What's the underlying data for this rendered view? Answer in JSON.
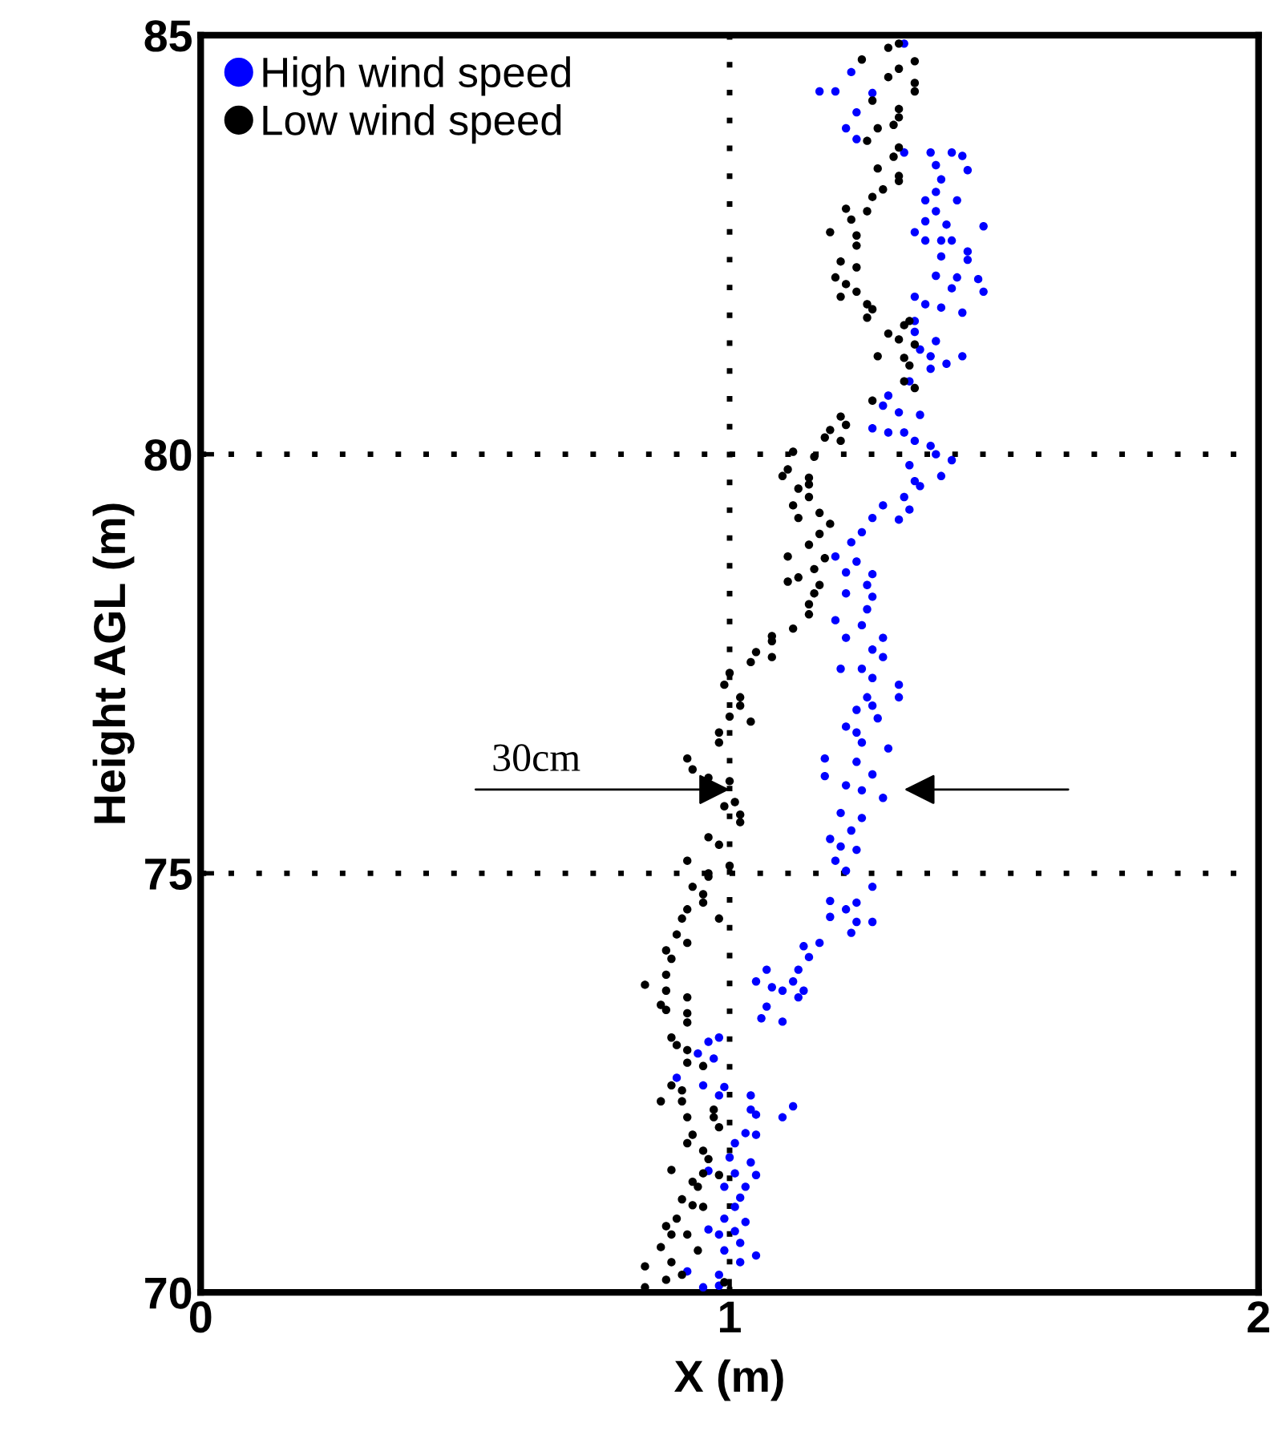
{
  "chart_data": {
    "type": "scatter",
    "xlabel": "X (m)",
    "ylabel": "Height AGL (m)",
    "xlim": [
      0,
      2
    ],
    "xticks": [
      0,
      1,
      2
    ],
    "ylim": [
      70,
      85
    ],
    "yticks": [
      70,
      75,
      80,
      85
    ],
    "grid": true,
    "legend": "top left",
    "marker": "circle",
    "annotations": [
      {
        "text": "30cm",
        "x": 1.0,
        "y": 76
      }
    ],
    "series": [
      {
        "name": "High wind speed",
        "color": "#0000ff",
        "x": [
          1.33,
          1.23,
          1.17,
          1.2,
          1.27,
          1.24,
          1.22,
          1.24,
          1.33,
          1.38,
          1.42,
          1.44,
          1.39,
          1.45,
          1.4,
          1.39,
          1.37,
          1.43,
          1.39,
          1.37,
          1.41,
          1.48,
          1.35,
          1.37,
          1.4,
          1.42,
          1.45,
          1.4,
          1.45,
          1.39,
          1.43,
          1.47,
          1.42,
          1.48,
          1.35,
          1.37,
          1.4,
          1.44,
          1.35,
          1.35,
          1.39,
          1.36,
          1.38,
          1.44,
          1.41,
          1.38,
          1.34,
          1.3,
          1.29,
          1.32,
          1.36,
          1.27,
          1.3,
          1.33,
          1.35,
          1.38,
          1.39,
          1.42,
          1.34,
          1.4,
          1.35,
          1.36,
          1.33,
          1.29,
          1.34,
          1.27,
          1.32,
          1.25,
          1.23,
          1.2,
          1.24,
          1.22,
          1.27,
          1.26,
          1.27,
          1.22,
          1.26,
          1.2,
          1.25,
          1.29,
          1.22,
          1.27,
          1.29,
          1.21,
          1.25,
          1.27,
          1.32,
          1.32,
          1.26,
          1.27,
          1.24,
          1.28,
          1.22,
          1.24,
          1.25,
          1.3,
          1.18,
          1.24,
          1.27,
          1.18,
          1.22,
          1.25,
          1.29,
          1.21,
          1.25,
          1.23,
          1.19,
          1.21,
          1.24,
          1.2,
          1.22,
          1.27,
          1.19,
          1.24,
          1.22,
          1.19,
          1.24,
          1.27,
          1.23,
          1.17,
          1.14,
          1.15,
          1.13,
          1.07,
          1.12,
          1.05,
          1.08,
          1.1,
          1.14,
          1.13,
          1.07,
          1.06,
          1.1,
          0.98,
          0.96,
          0.94,
          0.97,
          0.9,
          0.95,
          0.99,
          0.98,
          1.04,
          1.12,
          1.04,
          1.1,
          1.05,
          1.03,
          1.05,
          1.01,
          1.0,
          1.04,
          0.96,
          1.01,
          1.05,
          0.99,
          1.03,
          1.02,
          1.01,
          0.99,
          1.03,
          0.96,
          0.98,
          1.01,
          1.02,
          0.99,
          1.02,
          1.05,
          0.92,
          0.98,
          0.98,
          0.95
        ],
        "values": [
          84.9,
          84.56,
          84.33,
          84.33,
          84.31,
          84.08,
          83.89,
          83.76,
          83.6,
          83.6,
          83.6,
          83.56,
          83.45,
          83.39,
          83.28,
          83.13,
          83.03,
          83.03,
          82.9,
          82.78,
          82.74,
          82.72,
          82.65,
          82.55,
          82.55,
          82.55,
          82.42,
          82.36,
          82.32,
          82.13,
          82.11,
          82.09,
          81.98,
          81.94,
          81.88,
          81.79,
          81.75,
          81.69,
          81.59,
          81.46,
          81.35,
          81.25,
          81.17,
          81.17,
          81.08,
          81.02,
          80.87,
          80.7,
          80.58,
          80.5,
          80.47,
          80.31,
          80.26,
          80.26,
          80.16,
          80.1,
          80.0,
          79.93,
          79.87,
          79.74,
          79.68,
          79.62,
          79.49,
          79.39,
          79.34,
          79.24,
          79.22,
          79.07,
          78.95,
          78.78,
          78.72,
          78.59,
          78.57,
          78.44,
          78.3,
          78.34,
          78.15,
          78.02,
          77.96,
          77.81,
          77.81,
          77.67,
          77.58,
          77.44,
          77.44,
          77.33,
          77.25,
          77.1,
          77.1,
          77.0,
          76.95,
          76.85,
          76.75,
          76.68,
          76.56,
          76.49,
          76.37,
          76.33,
          76.18,
          76.16,
          76.05,
          75.99,
          75.9,
          75.72,
          75.66,
          75.51,
          75.41,
          75.32,
          75.28,
          75.15,
          75.03,
          74.84,
          74.67,
          74.65,
          74.57,
          74.48,
          74.42,
          74.42,
          74.29,
          74.17,
          74.13,
          74.0,
          73.85,
          73.85,
          73.71,
          73.71,
          73.64,
          73.6,
          73.6,
          73.52,
          73.41,
          73.27,
          73.23,
          73.04,
          72.99,
          72.85,
          72.79,
          72.56,
          72.47,
          72.45,
          72.35,
          72.35,
          72.22,
          72.18,
          72.09,
          72.12,
          71.9,
          71.88,
          71.78,
          71.61,
          71.55,
          71.45,
          71.42,
          71.4,
          71.26,
          71.26,
          71.13,
          71.02,
          70.88,
          70.84,
          70.75,
          70.69,
          70.73,
          70.59,
          70.5,
          70.36,
          70.44,
          70.25,
          70.21,
          70.08,
          70.06
        ]
      },
      {
        "name": "Low wind speed",
        "color": "#000000",
        "x": [
          1.3,
          1.32,
          1.25,
          1.35,
          1.32,
          1.3,
          1.35,
          1.35,
          1.27,
          1.32,
          1.32,
          1.31,
          1.28,
          1.26,
          1.32,
          1.31,
          1.28,
          1.32,
          1.32,
          1.29,
          1.27,
          1.22,
          1.26,
          1.23,
          1.19,
          1.24,
          1.24,
          1.21,
          1.24,
          1.2,
          1.22,
          1.24,
          1.21,
          1.26,
          1.27,
          1.26,
          1.34,
          1.33,
          1.3,
          1.32,
          1.35,
          1.28,
          1.33,
          1.34,
          1.33,
          1.35,
          1.27,
          1.21,
          1.22,
          1.19,
          1.18,
          1.21,
          1.12,
          1.16,
          1.11,
          1.1,
          1.15,
          1.15,
          1.13,
          1.15,
          1.12,
          1.13,
          1.17,
          1.19,
          1.17,
          1.15,
          1.11,
          1.18,
          1.16,
          1.13,
          1.17,
          1.16,
          1.11,
          1.15,
          1.15,
          1.12,
          1.08,
          1.08,
          1.05,
          1.08,
          1.04,
          1.0,
          0.99,
          1.02,
          1.02,
          1.0,
          1.04,
          0.98,
          0.98,
          0.92,
          0.93,
          0.96,
          1.0,
          null,
          1.01,
          0.99,
          1.02,
          1.02,
          0.96,
          0.98,
          0.92,
          1.0,
          0.96,
          0.96,
          0.93,
          0.95,
          0.95,
          0.92,
          0.98,
          0.91,
          0.9,
          0.92,
          0.88,
          0.89,
          0.88,
          0.84,
          0.88,
          0.92,
          0.87,
          0.88,
          0.92,
          0.92,
          0.89,
          0.9,
          0.92,
          0.92,
          0.95,
          0.89,
          0.91,
          0.87,
          0.91,
          0.97,
          0.92,
          0.97,
          0.98,
          0.93,
          0.92,
          0.95,
          0.96,
          0.89,
          0.95,
          0.98,
          0.93,
          0.94,
          0.91,
          0.93,
          0.95,
          0.9,
          0.88,
          0.89,
          0.92,
          0.87,
          0.94,
          0.89,
          0.84,
          0.91,
          0.88,
          0.84,
          0.99
        ],
        "values": [
          84.85,
          84.9,
          84.71,
          84.69,
          84.6,
          84.5,
          84.43,
          84.33,
          84.22,
          84.12,
          84.02,
          83.93,
          83.89,
          83.74,
          83.66,
          83.55,
          83.41,
          83.32,
          83.26,
          83.16,
          83.07,
          82.93,
          82.9,
          82.8,
          82.65,
          82.61,
          82.49,
          82.3,
          82.23,
          82.11,
          82.03,
          81.94,
          81.88,
          81.79,
          81.73,
          81.63,
          81.59,
          81.54,
          81.44,
          81.37,
          81.31,
          81.17,
          81.15,
          81.06,
          80.87,
          80.79,
          80.64,
          80.45,
          80.35,
          80.29,
          80.2,
          80.16,
          80.03,
          79.97,
          79.82,
          79.74,
          79.72,
          79.64,
          79.59,
          79.49,
          79.39,
          79.24,
          79.3,
          79.17,
          79.05,
          78.92,
          78.78,
          78.76,
          78.63,
          78.53,
          78.44,
          78.34,
          78.48,
          78.21,
          78.09,
          77.92,
          77.83,
          77.77,
          77.64,
          77.58,
          77.52,
          77.39,
          77.25,
          77.1,
          77.0,
          76.87,
          76.81,
          76.68,
          76.56,
          76.37,
          76.24,
          76.14,
          76.1,
          null,
          75.85,
          75.8,
          75.7,
          75.61,
          75.43,
          75.34,
          75.15,
          75.09,
          75.0,
          74.96,
          74.84,
          74.75,
          74.65,
          74.57,
          74.46,
          74.46,
          74.27,
          74.17,
          74.08,
          73.98,
          73.79,
          73.67,
          73.6,
          73.52,
          73.43,
          73.37,
          73.33,
          73.22,
          73.04,
          72.95,
          72.89,
          72.74,
          72.7,
          72.47,
          72.41,
          72.28,
          72.28,
          72.18,
          72.09,
          72.09,
          71.97,
          71.88,
          71.78,
          71.69,
          71.59,
          71.46,
          71.42,
          71.4,
          71.32,
          71.26,
          71.11,
          71.04,
          71.02,
          70.88,
          70.79,
          70.69,
          70.69,
          70.54,
          70.5,
          70.36,
          70.31,
          70.21,
          70.15,
          70.06,
          70.12
        ]
      }
    ]
  }
}
